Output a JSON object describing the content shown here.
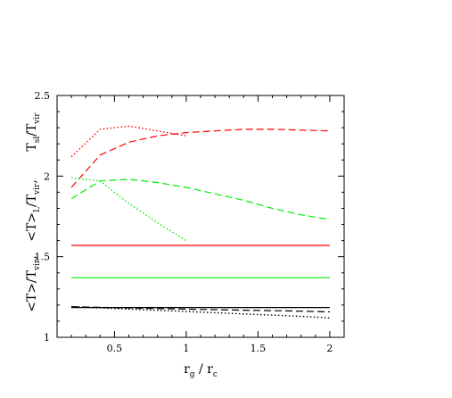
{
  "chart_data": {
    "type": "line",
    "xlim": [
      0.1,
      2.1
    ],
    "ylim": [
      1.0,
      2.5
    ],
    "x_ticks": [
      0.5,
      1,
      1.5,
      2
    ],
    "x_tick_labels": [
      "0.5",
      "1",
      "1.5",
      "2"
    ],
    "y_ticks": [
      1,
      1.5,
      2,
      2.5
    ],
    "y_tick_labels": [
      "1",
      "1.5",
      "2",
      "2.5"
    ],
    "xlabel": {
      "main1": "r",
      "sub1": "g",
      "sep": " / ",
      "main2": "r",
      "sub2": "c"
    },
    "ylabel": {
      "tsl": {
        "main1": "T",
        "sub1": "sl",
        "sep": "/",
        "main2": "T",
        "sub2": "vir"
      },
      "tl": {
        "main1": "<T>",
        "sub1": "L",
        "sep": "/",
        "main2": "T",
        "sub2": "vir",
        "tail": ","
      },
      "tm": {
        "main1": "<T>",
        "sep": "/",
        "main2": "T",
        "sub2": "vir",
        "tail": ","
      }
    },
    "grid": false,
    "series": [
      {
        "color": "#ff0000",
        "dash": "dotted",
        "x": [
          0.2,
          0.4,
          0.6,
          0.8,
          1.0
        ],
        "y": [
          2.12,
          2.29,
          2.31,
          2.28,
          2.25
        ]
      },
      {
        "color": "#ff0000",
        "dash": "dashed",
        "x": [
          0.2,
          0.4,
          0.6,
          0.8,
          1.0,
          1.2,
          1.4,
          1.6,
          1.8,
          2.0
        ],
        "y": [
          1.93,
          2.13,
          2.21,
          2.25,
          2.27,
          2.28,
          2.29,
          2.29,
          2.285,
          2.28
        ]
      },
      {
        "color": "#ff0000",
        "dash": "solid",
        "x": [
          0.2,
          2.0
        ],
        "y": [
          1.57,
          1.57
        ]
      },
      {
        "color": "#00ee00",
        "dash": "dotted",
        "x": [
          0.2,
          0.4,
          0.6,
          0.8,
          1.0
        ],
        "y": [
          1.99,
          1.97,
          1.83,
          1.71,
          1.6
        ]
      },
      {
        "color": "#00ee00",
        "dash": "dashed",
        "x": [
          0.2,
          0.4,
          0.6,
          0.8,
          1.0,
          1.2,
          1.4,
          1.6,
          1.8,
          2.0
        ],
        "y": [
          1.86,
          1.97,
          1.98,
          1.96,
          1.93,
          1.89,
          1.85,
          1.8,
          1.76,
          1.73
        ]
      },
      {
        "color": "#00ee00",
        "dash": "solid",
        "x": [
          0.2,
          2.0
        ],
        "y": [
          1.37,
          1.37
        ]
      },
      {
        "color": "#000000",
        "dash": "dotted",
        "x": [
          0.2,
          0.6,
          1.0,
          1.4,
          1.8,
          2.0
        ],
        "y": [
          1.19,
          1.175,
          1.16,
          1.145,
          1.13,
          1.12
        ]
      },
      {
        "color": "#000000",
        "dash": "dashed",
        "x": [
          0.2,
          0.6,
          1.0,
          1.4,
          1.8,
          2.0
        ],
        "y": [
          1.19,
          1.182,
          1.175,
          1.168,
          1.162,
          1.158
        ]
      },
      {
        "color": "#000000",
        "dash": "solid",
        "x": [
          0.2,
          2.0
        ],
        "y": [
          1.185,
          1.185
        ]
      }
    ]
  }
}
